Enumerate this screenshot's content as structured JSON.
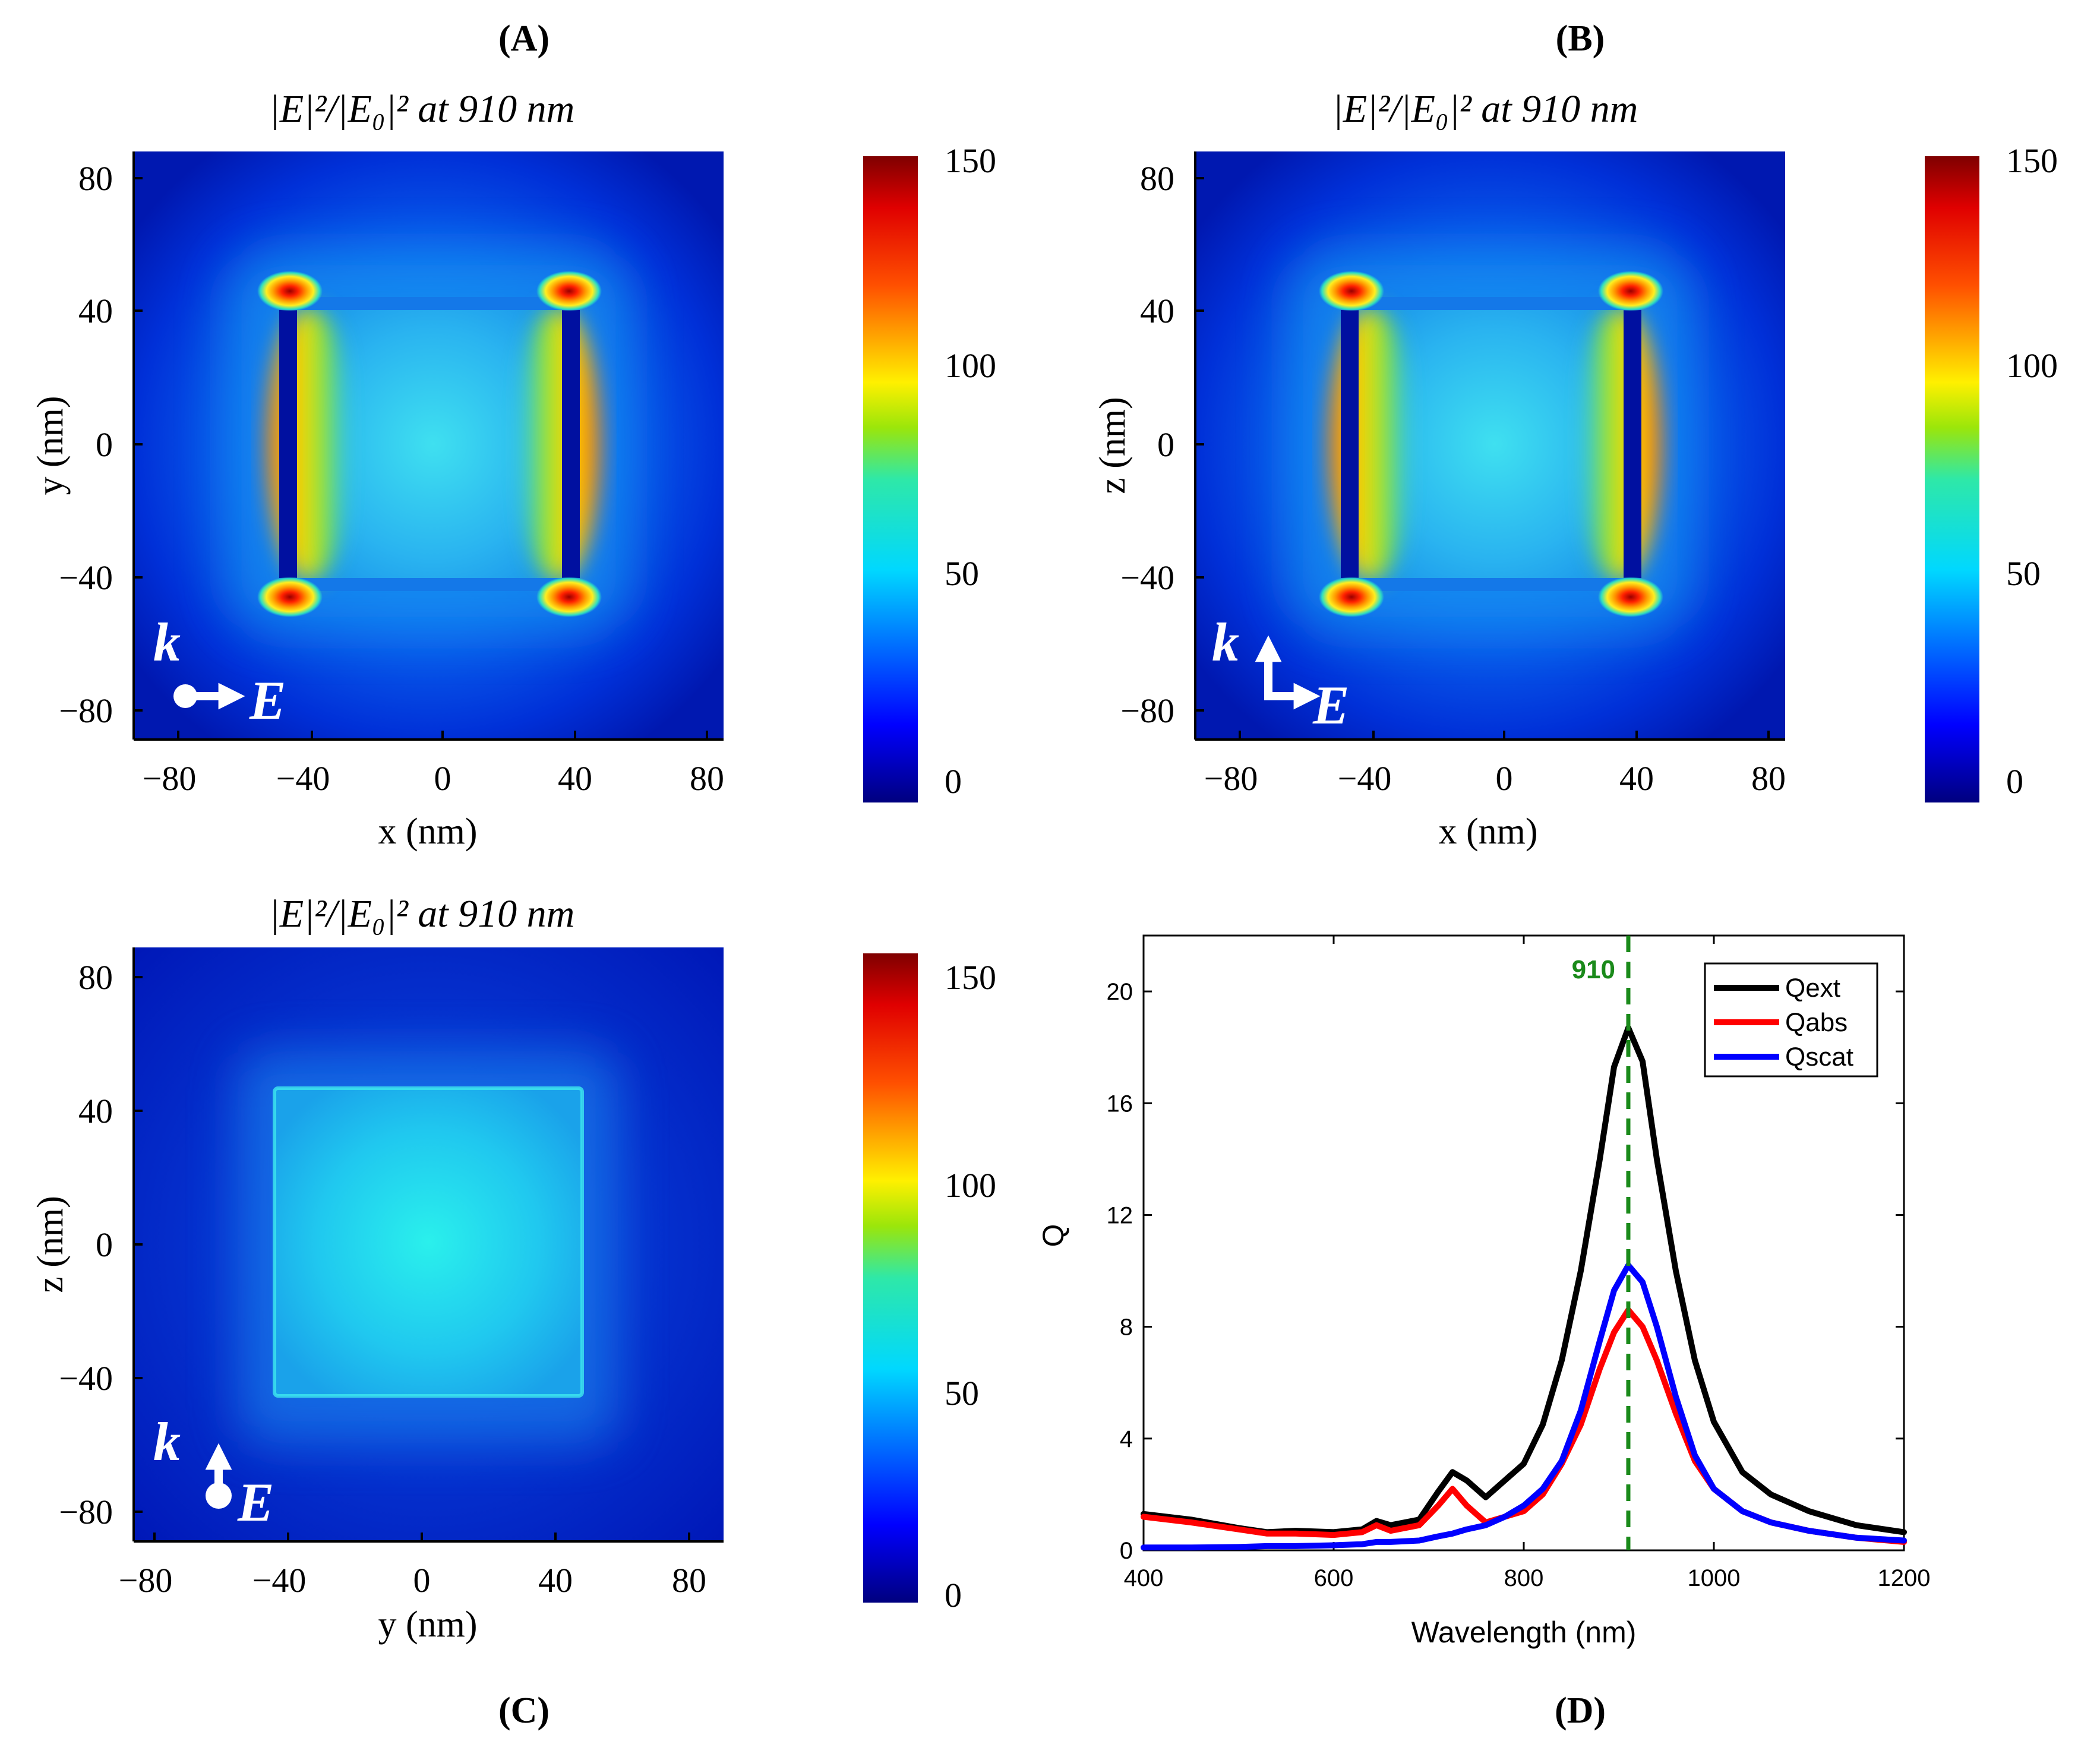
{
  "figure": {
    "panels": [
      {
        "id": "A",
        "panel_label": "(A)",
        "title": "|E|²/|E₀|² at 910 nm",
        "xlabel": "x (nm)",
        "ylabel": "y (nm)",
        "xticks": [
          "−80",
          "−40",
          "0",
          "40",
          "80"
        ],
        "yticks": [
          "80",
          "40",
          "0",
          "−40",
          "−80"
        ],
        "colorbar_ticks": [
          "150",
          "100",
          "50",
          "0"
        ],
        "k_label": "k",
        "e_label": "E",
        "polarization": "k-out-of-plane, E along x",
        "map": "square frame with hot corners and side lobes"
      },
      {
        "id": "B",
        "panel_label": "(B)",
        "title": "|E|²/|E₀|² at 910 nm",
        "xlabel": "x (nm)",
        "ylabel": "z (nm)",
        "xticks": [
          "−80",
          "−40",
          "0",
          "40",
          "80"
        ],
        "yticks": [
          "80",
          "40",
          "0",
          "−40",
          "−80"
        ],
        "colorbar_ticks": [
          "150",
          "100",
          "50",
          "0"
        ],
        "k_label": "k",
        "e_label": "E",
        "polarization": "k up, E along x",
        "map": "square frame with hot corners and side lobes"
      },
      {
        "id": "C",
        "panel_label": "(C)",
        "title": "|E|²/|E₀|² at 910 nm",
        "xlabel": "y (nm)",
        "ylabel": "z (nm)",
        "xticks": [
          "−80",
          "−40",
          "0",
          "40",
          "80"
        ],
        "yticks": [
          "80",
          "40",
          "0",
          "−40",
          "−80"
        ],
        "colorbar_ticks": [
          "150",
          "100",
          "50",
          "0"
        ],
        "k_label": "k",
        "e_label": "E",
        "polarization": "k out of plane, E up",
        "map": "uniform cyan square"
      }
    ],
    "colors": {
      "jet_low": "#00007f",
      "jet_mid": "#00d8ff",
      "jet_high": "#7f0000",
      "ext": "#000000",
      "abs": "#ff0000",
      "scat": "#0000ff",
      "marker": "#1a8a1a"
    }
  },
  "chart_data": {
    "type": "line",
    "panel_label": "(D)",
    "title": "",
    "xlabel": "Wavelength (nm)",
    "ylabel": "Q",
    "xlim": [
      400,
      1200
    ],
    "ylim": [
      0,
      22
    ],
    "xticks": [
      400,
      600,
      800,
      1000,
      1200
    ],
    "yticks": [
      0,
      4,
      8,
      12,
      16,
      20
    ],
    "grid": false,
    "legend_position": "top-right",
    "marker_line": {
      "x": 910,
      "label": "910",
      "style": "dashed"
    },
    "x": [
      400,
      450,
      500,
      530,
      560,
      600,
      630,
      645,
      660,
      690,
      710,
      725,
      740,
      760,
      780,
      800,
      820,
      840,
      860,
      880,
      895,
      910,
      925,
      940,
      960,
      980,
      1000,
      1030,
      1060,
      1100,
      1150,
      1200
    ],
    "series": [
      {
        "name": "Qext",
        "color": "#000000",
        "values": [
          1.3,
          1.1,
          0.8,
          0.65,
          0.7,
          0.65,
          0.75,
          1.05,
          0.9,
          1.1,
          2.1,
          2.8,
          2.5,
          1.9,
          2.5,
          3.1,
          4.5,
          6.8,
          10.0,
          14.0,
          17.3,
          18.7,
          17.5,
          14.0,
          10.0,
          6.8,
          4.6,
          2.8,
          2.0,
          1.4,
          0.9,
          0.65
        ]
      },
      {
        "name": "Qabs",
        "color": "#ff0000",
        "values": [
          1.2,
          1.0,
          0.75,
          0.6,
          0.6,
          0.55,
          0.65,
          0.9,
          0.7,
          0.9,
          1.6,
          2.2,
          1.6,
          1.0,
          1.2,
          1.4,
          2.0,
          3.1,
          4.5,
          6.5,
          7.8,
          8.6,
          8.0,
          6.8,
          4.9,
          3.2,
          2.2,
          1.4,
          1.0,
          0.7,
          0.45,
          0.3
        ]
      },
      {
        "name": "Qscat",
        "color": "#0000ff",
        "values": [
          0.1,
          0.1,
          0.12,
          0.15,
          0.15,
          0.18,
          0.22,
          0.3,
          0.3,
          0.35,
          0.5,
          0.6,
          0.75,
          0.9,
          1.2,
          1.6,
          2.2,
          3.2,
          5.0,
          7.5,
          9.3,
          10.2,
          9.6,
          8.0,
          5.5,
          3.4,
          2.2,
          1.4,
          1.0,
          0.7,
          0.45,
          0.35
        ]
      }
    ]
  }
}
